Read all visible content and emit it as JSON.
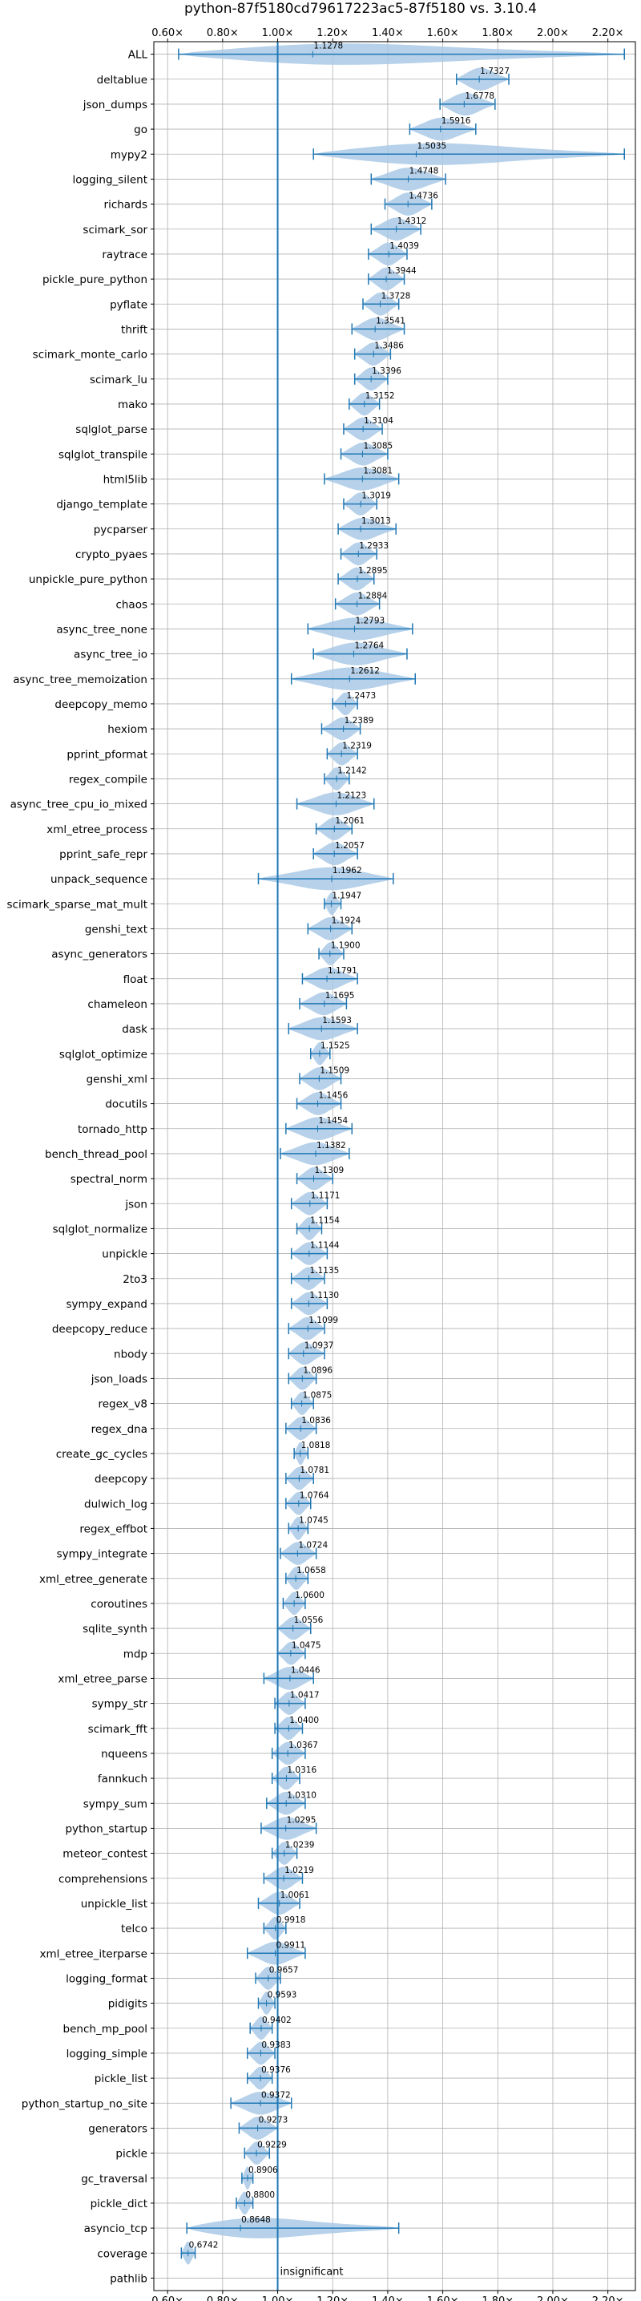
{
  "chart_data": {
    "type": "violin",
    "title": "python-87f5180cd79617223ac5-87f5180 vs. 3.10.4",
    "xlim": [
      0.55,
      2.3
    ],
    "xticks": [
      "0.60×",
      "0.80×",
      "1.00×",
      "1.20×",
      "1.40×",
      "1.60×",
      "1.80×",
      "2.00×",
      "2.20×"
    ],
    "xtick_values": [
      0.6,
      0.8,
      1.0,
      1.2,
      1.4,
      1.6,
      1.8,
      2.0,
      2.2
    ],
    "reference_line": 1.0,
    "grid": true,
    "colors": {
      "violin": "#a9c9e5",
      "bar": "#1f77b4",
      "grid": "#b0b0b0"
    },
    "categories": [
      "ALL",
      "deltablue",
      "json_dumps",
      "go",
      "mypy2",
      "logging_silent",
      "richards",
      "scimark_sor",
      "raytrace",
      "pickle_pure_python",
      "pyflate",
      "thrift",
      "scimark_monte_carlo",
      "scimark_lu",
      "mako",
      "sqlglot_parse",
      "sqlglot_transpile",
      "html5lib",
      "django_template",
      "pycparser",
      "crypto_pyaes",
      "unpickle_pure_python",
      "chaos",
      "async_tree_none",
      "async_tree_io",
      "async_tree_memoization",
      "deepcopy_memo",
      "hexiom",
      "pprint_pformat",
      "regex_compile",
      "async_tree_cpu_io_mixed",
      "xml_etree_process",
      "pprint_safe_repr",
      "unpack_sequence",
      "scimark_sparse_mat_mult",
      "genshi_text",
      "async_generators",
      "float",
      "chameleon",
      "dask",
      "sqlglot_optimize",
      "genshi_xml",
      "docutils",
      "tornado_http",
      "bench_thread_pool",
      "spectral_norm",
      "json",
      "sqlglot_normalize",
      "unpickle",
      "2to3",
      "sympy_expand",
      "deepcopy_reduce",
      "nbody",
      "json_loads",
      "regex_v8",
      "regex_dna",
      "create_gc_cycles",
      "deepcopy",
      "dulwich_log",
      "regex_effbot",
      "sympy_integrate",
      "xml_etree_generate",
      "coroutines",
      "sqlite_synth",
      "mdp",
      "xml_etree_parse",
      "sympy_str",
      "scimark_fft",
      "nqueens",
      "fannkuch",
      "sympy_sum",
      "python_startup",
      "meteor_contest",
      "comprehensions",
      "unpickle_list",
      "telco",
      "xml_etree_iterparse",
      "logging_format",
      "pidigits",
      "bench_mp_pool",
      "logging_simple",
      "pickle_list",
      "python_startup_no_site",
      "generators",
      "pickle",
      "gc_traversal",
      "pickle_dict",
      "asyncio_tcp",
      "coverage",
      "pathlib"
    ],
    "values": [
      1.1278,
      1.7327,
      1.6778,
      1.5916,
      1.5035,
      1.4748,
      1.4736,
      1.4312,
      1.4039,
      1.3944,
      1.3728,
      1.3541,
      1.3486,
      1.3396,
      1.3152,
      1.3104,
      1.3085,
      1.3081,
      1.3019,
      1.3013,
      1.2933,
      1.2895,
      1.2884,
      1.2793,
      1.2764,
      1.2612,
      1.2473,
      1.2389,
      1.2319,
      1.2142,
      1.2123,
      1.2061,
      1.2057,
      1.1962,
      1.1947,
      1.1924,
      1.19,
      1.1791,
      1.1695,
      1.1593,
      1.1525,
      1.1509,
      1.1456,
      1.1454,
      1.1382,
      1.1309,
      1.1171,
      1.1154,
      1.1144,
      1.1135,
      1.113,
      1.1099,
      1.0937,
      1.0896,
      1.0875,
      1.0836,
      1.0818,
      1.0781,
      1.0764,
      1.0745,
      1.0724,
      1.0658,
      1.06,
      1.0556,
      1.0475,
      1.0446,
      1.0417,
      1.04,
      1.0367,
      1.0316,
      1.031,
      1.0295,
      1.0239,
      1.0219,
      1.0061,
      0.9918,
      0.9911,
      0.9657,
      0.9593,
      0.9402,
      0.9383,
      0.9376,
      0.9372,
      0.9273,
      0.9229,
      0.8906,
      0.88,
      0.8648,
      0.6742,
      null
    ],
    "value_labels": [
      "1.1278",
      "1.7327",
      "1.6778",
      "1.5916",
      "1.5035",
      "1.4748",
      "1.4736",
      "1.4312",
      "1.4039",
      "1.3944",
      "1.3728",
      "1.3541",
      "1.3486",
      "1.3396",
      "1.3152",
      "1.3104",
      "1.3085",
      "1.3081",
      "1.3019",
      "1.3013",
      "1.2933",
      "1.2895",
      "1.2884",
      "1.2793",
      "1.2764",
      "1.2612",
      "1.2473",
      "1.2389",
      "1.2319",
      "1.2142",
      "1.2123",
      "1.2061",
      "1.2057",
      "1.1962",
      "1.1947",
      "1.1924",
      "1.1900",
      "1.1791",
      "1.1695",
      "1.1593",
      "1.1525",
      "1.1509",
      "1.1456",
      "1.1454",
      "1.1382",
      "1.1309",
      "1.1171",
      "1.1154",
      "1.1144",
      "1.1135",
      "1.1130",
      "1.1099",
      "1.0937",
      "1.0896",
      "1.0875",
      "1.0836",
      "1.0818",
      "1.0781",
      "1.0764",
      "1.0745",
      "1.0724",
      "1.0658",
      "1.0600",
      "1.0556",
      "1.0475",
      "1.0446",
      "1.0417",
      "1.0400",
      "1.0367",
      "1.0316",
      "1.0310",
      "1.0295",
      "1.0239",
      "1.0219",
      "1.0061",
      "0.9918",
      "0.9911",
      "0.9657",
      "0.9593",
      "0.9402",
      "0.9383",
      "0.9376",
      "0.9372",
      "0.9273",
      "0.9229",
      "0.8906",
      "0.8800",
      "0.8648",
      "0.6742",
      ""
    ],
    "ranges": [
      [
        0.64,
        2.26
      ],
      [
        1.65,
        1.84
      ],
      [
        1.59,
        1.79
      ],
      [
        1.48,
        1.72
      ],
      [
        1.13,
        2.26
      ],
      [
        1.34,
        1.61
      ],
      [
        1.39,
        1.56
      ],
      [
        1.34,
        1.52
      ],
      [
        1.33,
        1.47
      ],
      [
        1.33,
        1.46
      ],
      [
        1.31,
        1.44
      ],
      [
        1.27,
        1.46
      ],
      [
        1.28,
        1.41
      ],
      [
        1.28,
        1.4
      ],
      [
        1.26,
        1.37
      ],
      [
        1.24,
        1.38
      ],
      [
        1.23,
        1.4
      ],
      [
        1.17,
        1.44
      ],
      [
        1.24,
        1.36
      ],
      [
        1.22,
        1.43
      ],
      [
        1.23,
        1.36
      ],
      [
        1.22,
        1.35
      ],
      [
        1.21,
        1.37
      ],
      [
        1.11,
        1.49
      ],
      [
        1.13,
        1.47
      ],
      [
        1.05,
        1.5
      ],
      [
        1.2,
        1.29
      ],
      [
        1.16,
        1.3
      ],
      [
        1.18,
        1.29
      ],
      [
        1.17,
        1.26
      ],
      [
        1.07,
        1.35
      ],
      [
        1.14,
        1.27
      ],
      [
        1.13,
        1.29
      ],
      [
        0.93,
        1.42
      ],
      [
        1.17,
        1.23
      ],
      [
        1.11,
        1.27
      ],
      [
        1.15,
        1.24
      ],
      [
        1.09,
        1.29
      ],
      [
        1.08,
        1.25
      ],
      [
        1.04,
        1.29
      ],
      [
        1.12,
        1.19
      ],
      [
        1.08,
        1.23
      ],
      [
        1.07,
        1.23
      ],
      [
        1.03,
        1.27
      ],
      [
        1.01,
        1.26
      ],
      [
        1.07,
        1.2
      ],
      [
        1.05,
        1.18
      ],
      [
        1.07,
        1.16
      ],
      [
        1.05,
        1.18
      ],
      [
        1.05,
        1.17
      ],
      [
        1.05,
        1.18
      ],
      [
        1.04,
        1.17
      ],
      [
        1.04,
        1.17
      ],
      [
        1.04,
        1.14
      ],
      [
        1.05,
        1.13
      ],
      [
        1.03,
        1.14
      ],
      [
        1.06,
        1.11
      ],
      [
        1.03,
        1.13
      ],
      [
        1.03,
        1.12
      ],
      [
        1.04,
        1.11
      ],
      [
        1.01,
        1.14
      ],
      [
        1.03,
        1.11
      ],
      [
        1.02,
        1.1
      ],
      [
        1.0,
        1.12
      ],
      [
        1.0,
        1.1
      ],
      [
        0.95,
        1.13
      ],
      [
        0.99,
        1.1
      ],
      [
        0.99,
        1.09
      ],
      [
        0.98,
        1.1
      ],
      [
        0.98,
        1.08
      ],
      [
        0.96,
        1.1
      ],
      [
        0.94,
        1.14
      ],
      [
        0.98,
        1.07
      ],
      [
        0.95,
        1.09
      ],
      [
        0.93,
        1.08
      ],
      [
        0.95,
        1.03
      ],
      [
        0.89,
        1.1
      ],
      [
        0.92,
        1.01
      ],
      [
        0.93,
        0.99
      ],
      [
        0.9,
        0.98
      ],
      [
        0.89,
        0.99
      ],
      [
        0.89,
        0.98
      ],
      [
        0.83,
        1.05
      ],
      [
        0.86,
        1.0
      ],
      [
        0.88,
        0.97
      ],
      [
        0.87,
        0.91
      ],
      [
        0.85,
        0.91
      ],
      [
        0.67,
        1.44
      ],
      [
        0.65,
        0.7
      ],
      null
    ],
    "annotation": "insignificant"
  }
}
